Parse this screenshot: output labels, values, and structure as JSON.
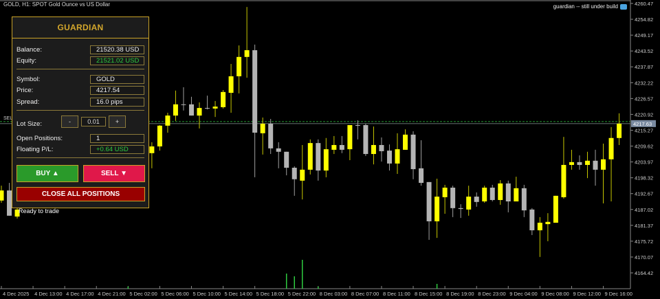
{
  "window": {
    "title": "GOLD, H1:  SPOT Gold Ounce vs US Dollar",
    "note": "guardian -- still under build",
    "note_icon": "graduation-cap-icon",
    "status": "Ready to trade",
    "sell_line_label": "SELL"
  },
  "panel": {
    "title": "GUARDIAN",
    "balance_label": "Balance:",
    "balance": "21520.38 USD",
    "equity_label": "Equity:",
    "equity": "21521.02 USD",
    "symbol_label": "Symbol:",
    "symbol": "GOLD",
    "price_label": "Price:",
    "price": "4217.54",
    "spread_label": "Spread:",
    "spread": "16.0 pips",
    "lot_label": "Lot Size:",
    "lot_minus": "-",
    "lot_value": "0.01",
    "lot_plus": "+",
    "positions_label": "Open Positions:",
    "positions": "1",
    "pl_label": "Floating P/L:",
    "pl": "+0.64 USD",
    "buy_label": "BUY ▲",
    "sell_label": "SELL ▼",
    "close_label": "CLOSE ALL POSITIONS",
    "colors": {
      "accent": "#c9a227",
      "buy": "#2a9a2a",
      "sell": "#e0184a",
      "close": "#990000",
      "profit": "#2ecc40"
    }
  },
  "chart_data": {
    "type": "candlestick",
    "symbol": "GOLD",
    "timeframe": "H1",
    "ylim": [
      4164.42,
      4260.47
    ],
    "price_ticks": [
      "4260.47",
      "4254.82",
      "4249.17",
      "4243.52",
      "4237.87",
      "4232.22",
      "4226.57",
      "4220.92",
      "4215.27",
      "4209.62",
      "4203.97",
      "4198.32",
      "4192.67",
      "4187.02",
      "4181.37",
      "4175.72",
      "4170.07",
      "4164.42"
    ],
    "time_labels": [
      "4 Dec 2025",
      "4 Dec 13:00",
      "4 Dec 17:00",
      "4 Dec 21:00",
      "5 Dec 02:00",
      "5 Dec 06:00",
      "5 Dec 10:00",
      "5 Dec 14:00",
      "5 Dec 18:00",
      "5 Dec 22:00",
      "8 Dec 03:00",
      "8 Dec 07:00",
      "8 Dec 11:00",
      "8 Dec 15:00",
      "8 Dec 19:00",
      "8 Dec 23:00",
      "9 Dec 04:00",
      "9 Dec 08:00",
      "9 Dec 12:00",
      "9 Dec 16:00"
    ],
    "current_price": "4217.63",
    "colors": {
      "bull": "#ffff00",
      "bear": "#b4b4b4",
      "volume": "#2ecc40"
    },
    "candles_ohlc_from_index0": [
      [
        4190.2,
        4195.5,
        4189.4,
        4193.8
      ],
      [
        4193.8,
        4196.5,
        4184.8,
        4184.8
      ],
      [
        4184.5,
        4188.7,
        4183.8,
        4187.0
      ],
      null,
      null,
      null,
      null,
      null,
      null,
      null,
      null,
      null,
      null,
      null,
      null,
      null,
      null,
      null,
      null,
      [
        4207.1,
        4211.0,
        4201.7,
        4209.5
      ],
      [
        4209.5,
        4217.1,
        4208.0,
        4216.9
      ],
      [
        4216.9,
        4221.5,
        4214.4,
        4220.5
      ],
      [
        4220.5,
        4229.4,
        4218.6,
        4224.5
      ],
      [
        4224.5,
        4230.6,
        4222.3,
        4224.4
      ],
      [
        4224.5,
        4227.2,
        4220.5,
        4220.5
      ],
      [
        4220.5,
        4225.2,
        4215.9,
        4223.2
      ],
      [
        4223.2,
        4227.6,
        4222.7,
        4223.0
      ],
      [
        4223.0,
        4225.7,
        4220.0,
        4223.7
      ],
      [
        4223.5,
        4229.6,
        4223.0,
        4228.9
      ],
      [
        4228.6,
        4238.9,
        4221.5,
        4234.5
      ],
      [
        4234.5,
        4245.5,
        4228.4,
        4241.4
      ],
      [
        4241.4,
        4259.2,
        4234.0,
        4243.8
      ],
      [
        4243.8,
        4245.8,
        4198.5,
        4214.4
      ],
      [
        4214.2,
        4219.8,
        4206.6,
        4217.6
      ],
      [
        4217.6,
        4219.3,
        4206.8,
        4208.8
      ],
      [
        4208.8,
        4211.0,
        4201.7,
        4207.6
      ],
      [
        4207.6,
        4207.6,
        4199.2,
        4201.9
      ],
      [
        4201.9,
        4202.4,
        4191.9,
        4197.8
      ],
      [
        4197.3,
        4210.0,
        4190.6,
        4201.2
      ],
      [
        4201.2,
        4212.0,
        4199.5,
        4210.7
      ],
      [
        4210.7,
        4212.0,
        4197.3,
        4200.9
      ],
      [
        4200.9,
        4212.5,
        4198.5,
        4208.5
      ],
      [
        4208.3,
        4213.2,
        4206.8,
        4210.0
      ],
      [
        4210.0,
        4213.2,
        4207.1,
        4208.3
      ],
      [
        4208.5,
        4217.1,
        4204.6,
        4217.1
      ],
      [
        4217.1,
        4218.8,
        4212.0,
        4217.0
      ],
      [
        4217.1,
        4217.6,
        4206.1,
        4206.8
      ],
      [
        4206.8,
        4216.6,
        4203.1,
        4210.0
      ],
      [
        4210.0,
        4212.7,
        4204.1,
        4207.8
      ],
      [
        4208.0,
        4210.2,
        4200.9,
        4203.4
      ],
      [
        4203.4,
        4214.2,
        4199.7,
        4208.5
      ],
      [
        4208.3,
        4215.6,
        4208.3,
        4213.7
      ],
      [
        4213.7,
        4214.9,
        4197.8,
        4201.4
      ],
      [
        4201.7,
        4211.7,
        4195.5,
        4196.5
      ],
      [
        4196.8,
        4196.8,
        4176.2,
        4182.8
      ],
      [
        4182.8,
        4198.0,
        4176.9,
        4191.6
      ],
      [
        4191.4,
        4195.8,
        4185.5,
        4194.8
      ],
      [
        4194.8,
        4195.5,
        4184.3,
        4187.5
      ],
      [
        4187.5,
        4188.9,
        4184.0,
        4187.2
      ],
      [
        4187.0,
        4195.5,
        4184.8,
        4191.6
      ],
      [
        4191.6,
        4193.1,
        4188.0,
        4189.7
      ],
      [
        4189.9,
        4195.5,
        4189.4,
        4194.8
      ],
      [
        4194.8,
        4195.8,
        4189.9,
        4190.4
      ],
      [
        4190.4,
        4197.5,
        4188.7,
        4196.3
      ],
      [
        4196.3,
        4197.3,
        4186.0,
        4189.9
      ],
      [
        4189.9,
        4198.7,
        4189.9,
        4194.6
      ],
      [
        4194.6,
        4195.8,
        4184.3,
        4186.7
      ],
      [
        4187.0,
        4187.5,
        4177.9,
        4179.6
      ],
      [
        4179.6,
        4184.3,
        4170.1,
        4182.3
      ],
      [
        4181.8,
        4185.7,
        4175.7,
        4182.6
      ],
      [
        4182.3,
        4191.9,
        4182.3,
        4191.9
      ],
      [
        4191.4,
        4212.9,
        4190.9,
        4202.9
      ],
      [
        4202.9,
        4208.3,
        4201.2,
        4203.9
      ],
      [
        4203.9,
        4206.3,
        4201.2,
        4202.9
      ],
      [
        4202.9,
        4207.6,
        4198.2,
        4204.4
      ],
      [
        4204.4,
        4208.3,
        4195.5,
        4201.2
      ],
      [
        4201.2,
        4210.5,
        4189.2,
        4204.9
      ],
      [
        4204.9,
        4216.4,
        4189.9,
        4212.5
      ],
      [
        4212.5,
        4221.3,
        4210.0,
        4217.6
      ]
    ],
    "volume_spikes": [
      {
        "index": 16,
        "v": 3
      },
      {
        "index": 36,
        "v": 22
      },
      {
        "index": 37,
        "v": 18
      },
      {
        "index": 38,
        "v": 42
      },
      {
        "index": 40,
        "v": 3
      },
      {
        "index": 55,
        "v": 7
      }
    ]
  }
}
